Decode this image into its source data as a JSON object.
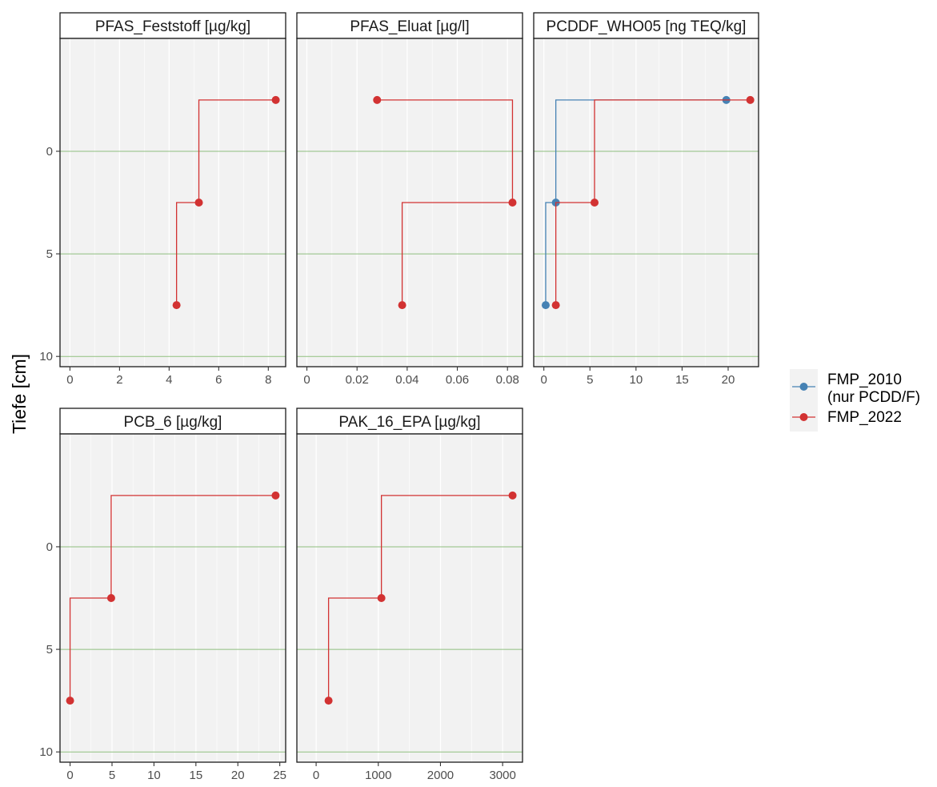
{
  "figure": {
    "y_axis_label": "Tiefe [cm]"
  },
  "legend": {
    "items": [
      {
        "label_line1": "FMP_2010",
        "label_line2": "(nur PCDD/F)",
        "color": "#4682b4"
      },
      {
        "label_line1": "FMP_2022",
        "label_line2": "",
        "color": "#d23232"
      }
    ]
  },
  "colors": {
    "panel_background": "#f2f2f2",
    "grid": "#ffffff",
    "reference_lines": "#8fbf7f",
    "strip_background": "#ffffff",
    "border": "#1a1a1a"
  },
  "chart_data": [
    {
      "type": "line",
      "title": "PFAS_Feststoff [µg/kg]",
      "xlabel": "",
      "ylabel": "Tiefe [cm]",
      "xlim": [
        -0.4,
        8.7
      ],
      "ylim": [
        -10.5,
        5.5
      ],
      "x_ticks": [
        0,
        2,
        4,
        6,
        8
      ],
      "y_ticks": [
        0,
        5,
        10
      ],
      "hlines": [
        0,
        5,
        10
      ],
      "series": [
        {
          "name": "FMP_2022",
          "color": "#d23232",
          "points": [
            {
              "x": 8.3,
              "y": -2.5
            },
            {
              "x": 5.2,
              "y": 2.5
            },
            {
              "x": 4.3,
              "y": 7.5
            }
          ]
        }
      ]
    },
    {
      "type": "line",
      "title": "PFAS_Eluat [µg/l]",
      "xlabel": "",
      "ylabel": "",
      "xlim": [
        -0.004,
        0.086
      ],
      "ylim": [
        -10.5,
        5.5
      ],
      "x_ticks": [
        0,
        0.02,
        0.04,
        0.06,
        0.08
      ],
      "x_tick_labels": [
        "0",
        "0.02",
        "0.04",
        "0.06",
        "0.08"
      ],
      "y_ticks": [
        0,
        5,
        10
      ],
      "hlines": [
        0,
        5,
        10
      ],
      "series": [
        {
          "name": "FMP_2022",
          "color": "#d23232",
          "points": [
            {
              "x": 0.028,
              "y": -2.5
            },
            {
              "x": 0.082,
              "y": 2.5
            },
            {
              "x": 0.038,
              "y": 7.5
            }
          ]
        }
      ]
    },
    {
      "type": "line",
      "title": "PCDDF_WHO05 [ng TEQ/kg]",
      "xlabel": "",
      "ylabel": "",
      "xlim": [
        -1.1,
        23.3
      ],
      "ylim": [
        -10.5,
        5.5
      ],
      "x_ticks": [
        0,
        5,
        10,
        15,
        20
      ],
      "y_ticks": [
        0,
        5,
        10
      ],
      "hlines": [
        0,
        5,
        10
      ],
      "series": [
        {
          "name": "FMP_2010",
          "color": "#4682b4",
          "points": [
            {
              "x": 19.8,
              "y": -2.5
            },
            {
              "x": 1.3,
              "y": 2.5
            },
            {
              "x": 0.2,
              "y": 7.5
            }
          ]
        },
        {
          "name": "FMP_2022",
          "color": "#d23232",
          "points": [
            {
              "x": 22.4,
              "y": -2.5
            },
            {
              "x": 5.5,
              "y": 2.5
            },
            {
              "x": 1.3,
              "y": 7.5
            }
          ]
        }
      ]
    },
    {
      "type": "line",
      "title": "PCB_6 [µg/kg]",
      "xlabel": "",
      "ylabel": "Tiefe [cm]",
      "xlim": [
        -1.2,
        25.7
      ],
      "ylim": [
        -10.5,
        5.5
      ],
      "x_ticks": [
        0,
        5,
        10,
        15,
        20,
        25
      ],
      "y_ticks": [
        0,
        5,
        10
      ],
      "hlines": [
        0,
        5,
        10
      ],
      "series": [
        {
          "name": "FMP_2022",
          "color": "#d23232",
          "points": [
            {
              "x": 24.5,
              "y": -2.5
            },
            {
              "x": 4.9,
              "y": 2.5
            },
            {
              "x": 0.0,
              "y": 7.5
            }
          ]
        }
      ]
    },
    {
      "type": "line",
      "title": "PAK_16_EPA [µg/kg]",
      "xlabel": "",
      "ylabel": "",
      "xlim": [
        -310,
        3320
      ],
      "ylim": [
        -10.5,
        5.5
      ],
      "x_ticks": [
        0,
        1000,
        2000,
        3000
      ],
      "y_ticks": [
        0,
        5,
        10
      ],
      "hlines": [
        0,
        5,
        10
      ],
      "series": [
        {
          "name": "FMP_2022",
          "color": "#d23232",
          "points": [
            {
              "x": 3160,
              "y": -2.5
            },
            {
              "x": 1050,
              "y": 2.5
            },
            {
              "x": 200,
              "y": 7.5
            }
          ]
        }
      ]
    }
  ]
}
